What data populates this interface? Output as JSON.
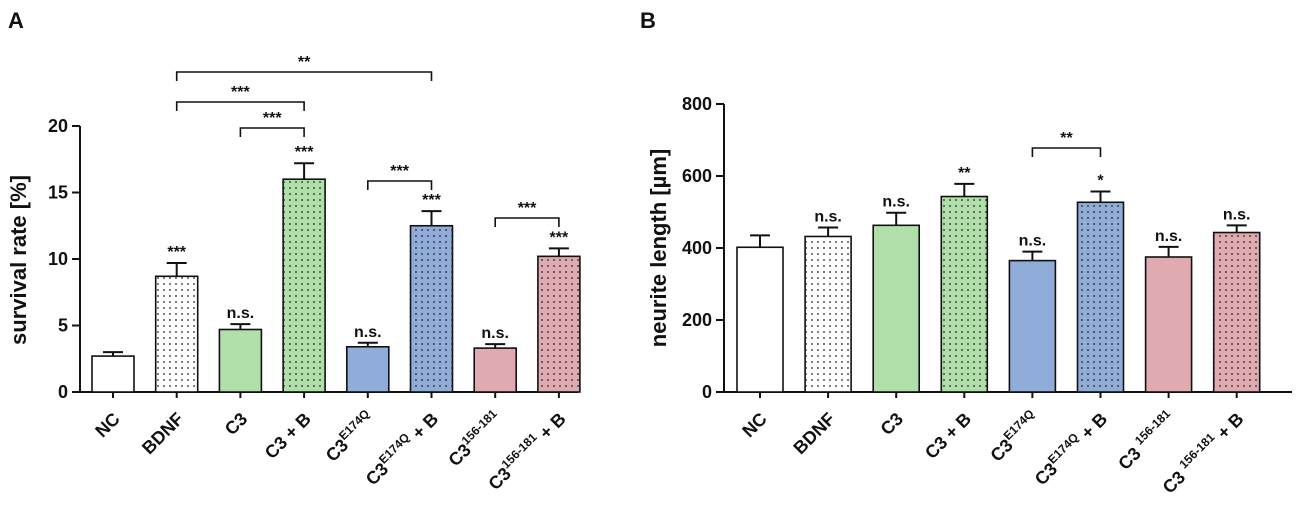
{
  "chart_data": [
    {
      "type": "bar",
      "panel": "A",
      "ylabel": "survival rate [%]",
      "ylim": [
        0,
        20
      ],
      "yticks": [
        0,
        5,
        10,
        15,
        20
      ],
      "categories": [
        {
          "base": "NC",
          "sup": "",
          "tail": ""
        },
        {
          "base": "BDNF",
          "sup": "",
          "tail": ""
        },
        {
          "base": "C3",
          "sup": "",
          "tail": ""
        },
        {
          "base": "C3 + B",
          "sup": "",
          "tail": ""
        },
        {
          "base": "C3",
          "sup": "E174Q",
          "tail": ""
        },
        {
          "base": "C3",
          "sup": "E174Q",
          "tail": " + B"
        },
        {
          "base": "C3",
          "sup": "156-181",
          "tail": ""
        },
        {
          "base": "C3",
          "sup": "156-181",
          "tail": " + B"
        }
      ],
      "values": [
        2.7,
        8.7,
        4.7,
        16.0,
        3.4,
        12.5,
        3.3,
        10.2
      ],
      "errors": [
        0.3,
        1.0,
        0.4,
        1.2,
        0.3,
        1.1,
        0.3,
        0.6
      ],
      "fills": [
        "#ffffff",
        "#ffffff",
        "#b1dfa9",
        "#b1dfa9",
        "#8fadd8",
        "#8fadd8",
        "#dfaab0",
        "#dfaab0"
      ],
      "dotted": [
        false,
        true,
        false,
        true,
        false,
        true,
        false,
        true
      ],
      "bar_labels": [
        "",
        "***",
        "n.s.",
        "***",
        "n.s.",
        "***",
        "n.s.",
        "***"
      ],
      "brackets": [
        {
          "from": 1,
          "to": 5,
          "label": "**"
        },
        {
          "from": 1,
          "to": 3,
          "label": "***"
        },
        {
          "from": 2,
          "to": 3,
          "label": "***"
        },
        {
          "from": 4,
          "to": 5,
          "label": "***"
        },
        {
          "from": 6,
          "to": 7,
          "label": "***"
        }
      ]
    },
    {
      "type": "bar",
      "panel": "B",
      "ylabel": "neurite length [µm]",
      "ylim": [
        0,
        800
      ],
      "yticks": [
        0,
        200,
        400,
        600,
        800
      ],
      "categories": [
        {
          "base": "NC",
          "sup": "",
          "tail": ""
        },
        {
          "base": "BDNF",
          "sup": "",
          "tail": ""
        },
        {
          "base": "C3",
          "sup": "",
          "tail": ""
        },
        {
          "base": "C3 + B",
          "sup": "",
          "tail": ""
        },
        {
          "base": "C3",
          "sup": "E174Q",
          "tail": ""
        },
        {
          "base": "C3",
          "sup": "E174Q",
          "tail": " + B"
        },
        {
          "base": "C3 ",
          "sup": "156-181",
          "tail": ""
        },
        {
          "base": "C3 ",
          "sup": "156-181",
          "tail": " + B"
        }
      ],
      "values": [
        402,
        432,
        463,
        543,
        365,
        527,
        375,
        443
      ],
      "errors": [
        33,
        25,
        35,
        35,
        25,
        30,
        28,
        20
      ],
      "fills": [
        "#ffffff",
        "#ffffff",
        "#b1dfa9",
        "#b1dfa9",
        "#8fadd8",
        "#8fadd8",
        "#dfaab0",
        "#dfaab0"
      ],
      "dotted": [
        false,
        true,
        false,
        true,
        false,
        true,
        false,
        true
      ],
      "bar_labels": [
        "",
        "n.s.",
        "n.s.",
        "**",
        "n.s.",
        "*",
        "n.s.",
        "n.s."
      ],
      "brackets": [
        {
          "from": 4,
          "to": 5,
          "label": "**"
        }
      ]
    }
  ]
}
